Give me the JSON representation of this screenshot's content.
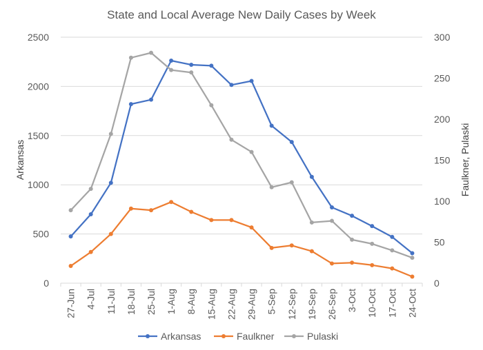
{
  "chart_data": {
    "type": "line",
    "title": "State and Local Average New Daily Cases by Week",
    "ylabel": "Arkansas",
    "y2label": "Faulkner, Pulaski",
    "ylim": [
      0,
      2500
    ],
    "y2lim": [
      0,
      300
    ],
    "yticks": [
      0,
      500,
      1000,
      1500,
      2000,
      2500
    ],
    "y2ticks": [
      0,
      50,
      100,
      150,
      200,
      250,
      300
    ],
    "grid": true,
    "legend": "bottom",
    "categories": [
      "27-Jun",
      "4-Jul",
      "11-Jul",
      "18-Jul",
      "25-Jul",
      "1-Aug",
      "8-Aug",
      "15-Aug",
      "22-Aug",
      "29-Aug",
      "5-Sep",
      "12-Sep",
      "19-Sep",
      "26-Sep",
      "3-Oct",
      "10-Oct",
      "17-Oct",
      "24-Oct"
    ],
    "series": [
      {
        "name": "Arkansas",
        "axis": "left",
        "color": "#4472c4",
        "values": [
          475,
          700,
          1020,
          1820,
          1865,
          2262,
          2220,
          2210,
          2015,
          2055,
          1600,
          1435,
          1080,
          770,
          685,
          580,
          470,
          305
        ]
      },
      {
        "name": "Faulkner",
        "axis": "right",
        "color": "#ed7d31",
        "values": [
          21,
          38,
          60,
          91,
          89,
          99,
          87,
          77,
          77,
          68,
          43,
          46,
          39,
          24,
          25,
          22,
          18,
          8
        ]
      },
      {
        "name": "Pulaski",
        "axis": "right",
        "color": "#a5a5a5",
        "values": [
          89,
          115,
          182,
          275,
          281,
          260,
          257,
          217,
          175,
          160,
          117,
          123,
          74,
          76,
          53,
          48,
          40,
          31
        ]
      }
    ]
  }
}
